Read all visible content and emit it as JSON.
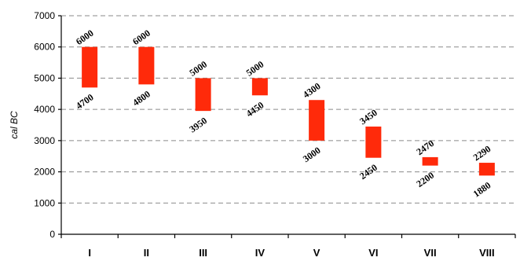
{
  "chart_data": {
    "type": "bar",
    "subtype": "floating-range",
    "ylabel": "cal BC",
    "xlabel": "",
    "ylim": [
      0,
      7000
    ],
    "yticks": [
      0,
      1000,
      2000,
      3000,
      4000,
      5000,
      6000,
      7000
    ],
    "grid": true,
    "bar_color": "#ff2a0a",
    "categories": [
      "I",
      "II",
      "III",
      "IV",
      "V",
      "VI",
      "VII",
      "VIII"
    ],
    "ranges": [
      {
        "category": "I",
        "high": 6000,
        "low": 4700
      },
      {
        "category": "II",
        "high": 6000,
        "low": 4800
      },
      {
        "category": "III",
        "high": 5000,
        "low": 3950
      },
      {
        "category": "IV",
        "high": 5000,
        "low": 4450
      },
      {
        "category": "V",
        "high": 4300,
        "low": 3000
      },
      {
        "category": "VI",
        "high": 3450,
        "low": 2450
      },
      {
        "category": "VII",
        "high": 2470,
        "low": 2200
      },
      {
        "category": "VIII",
        "high": 2290,
        "low": 1880
      }
    ]
  }
}
